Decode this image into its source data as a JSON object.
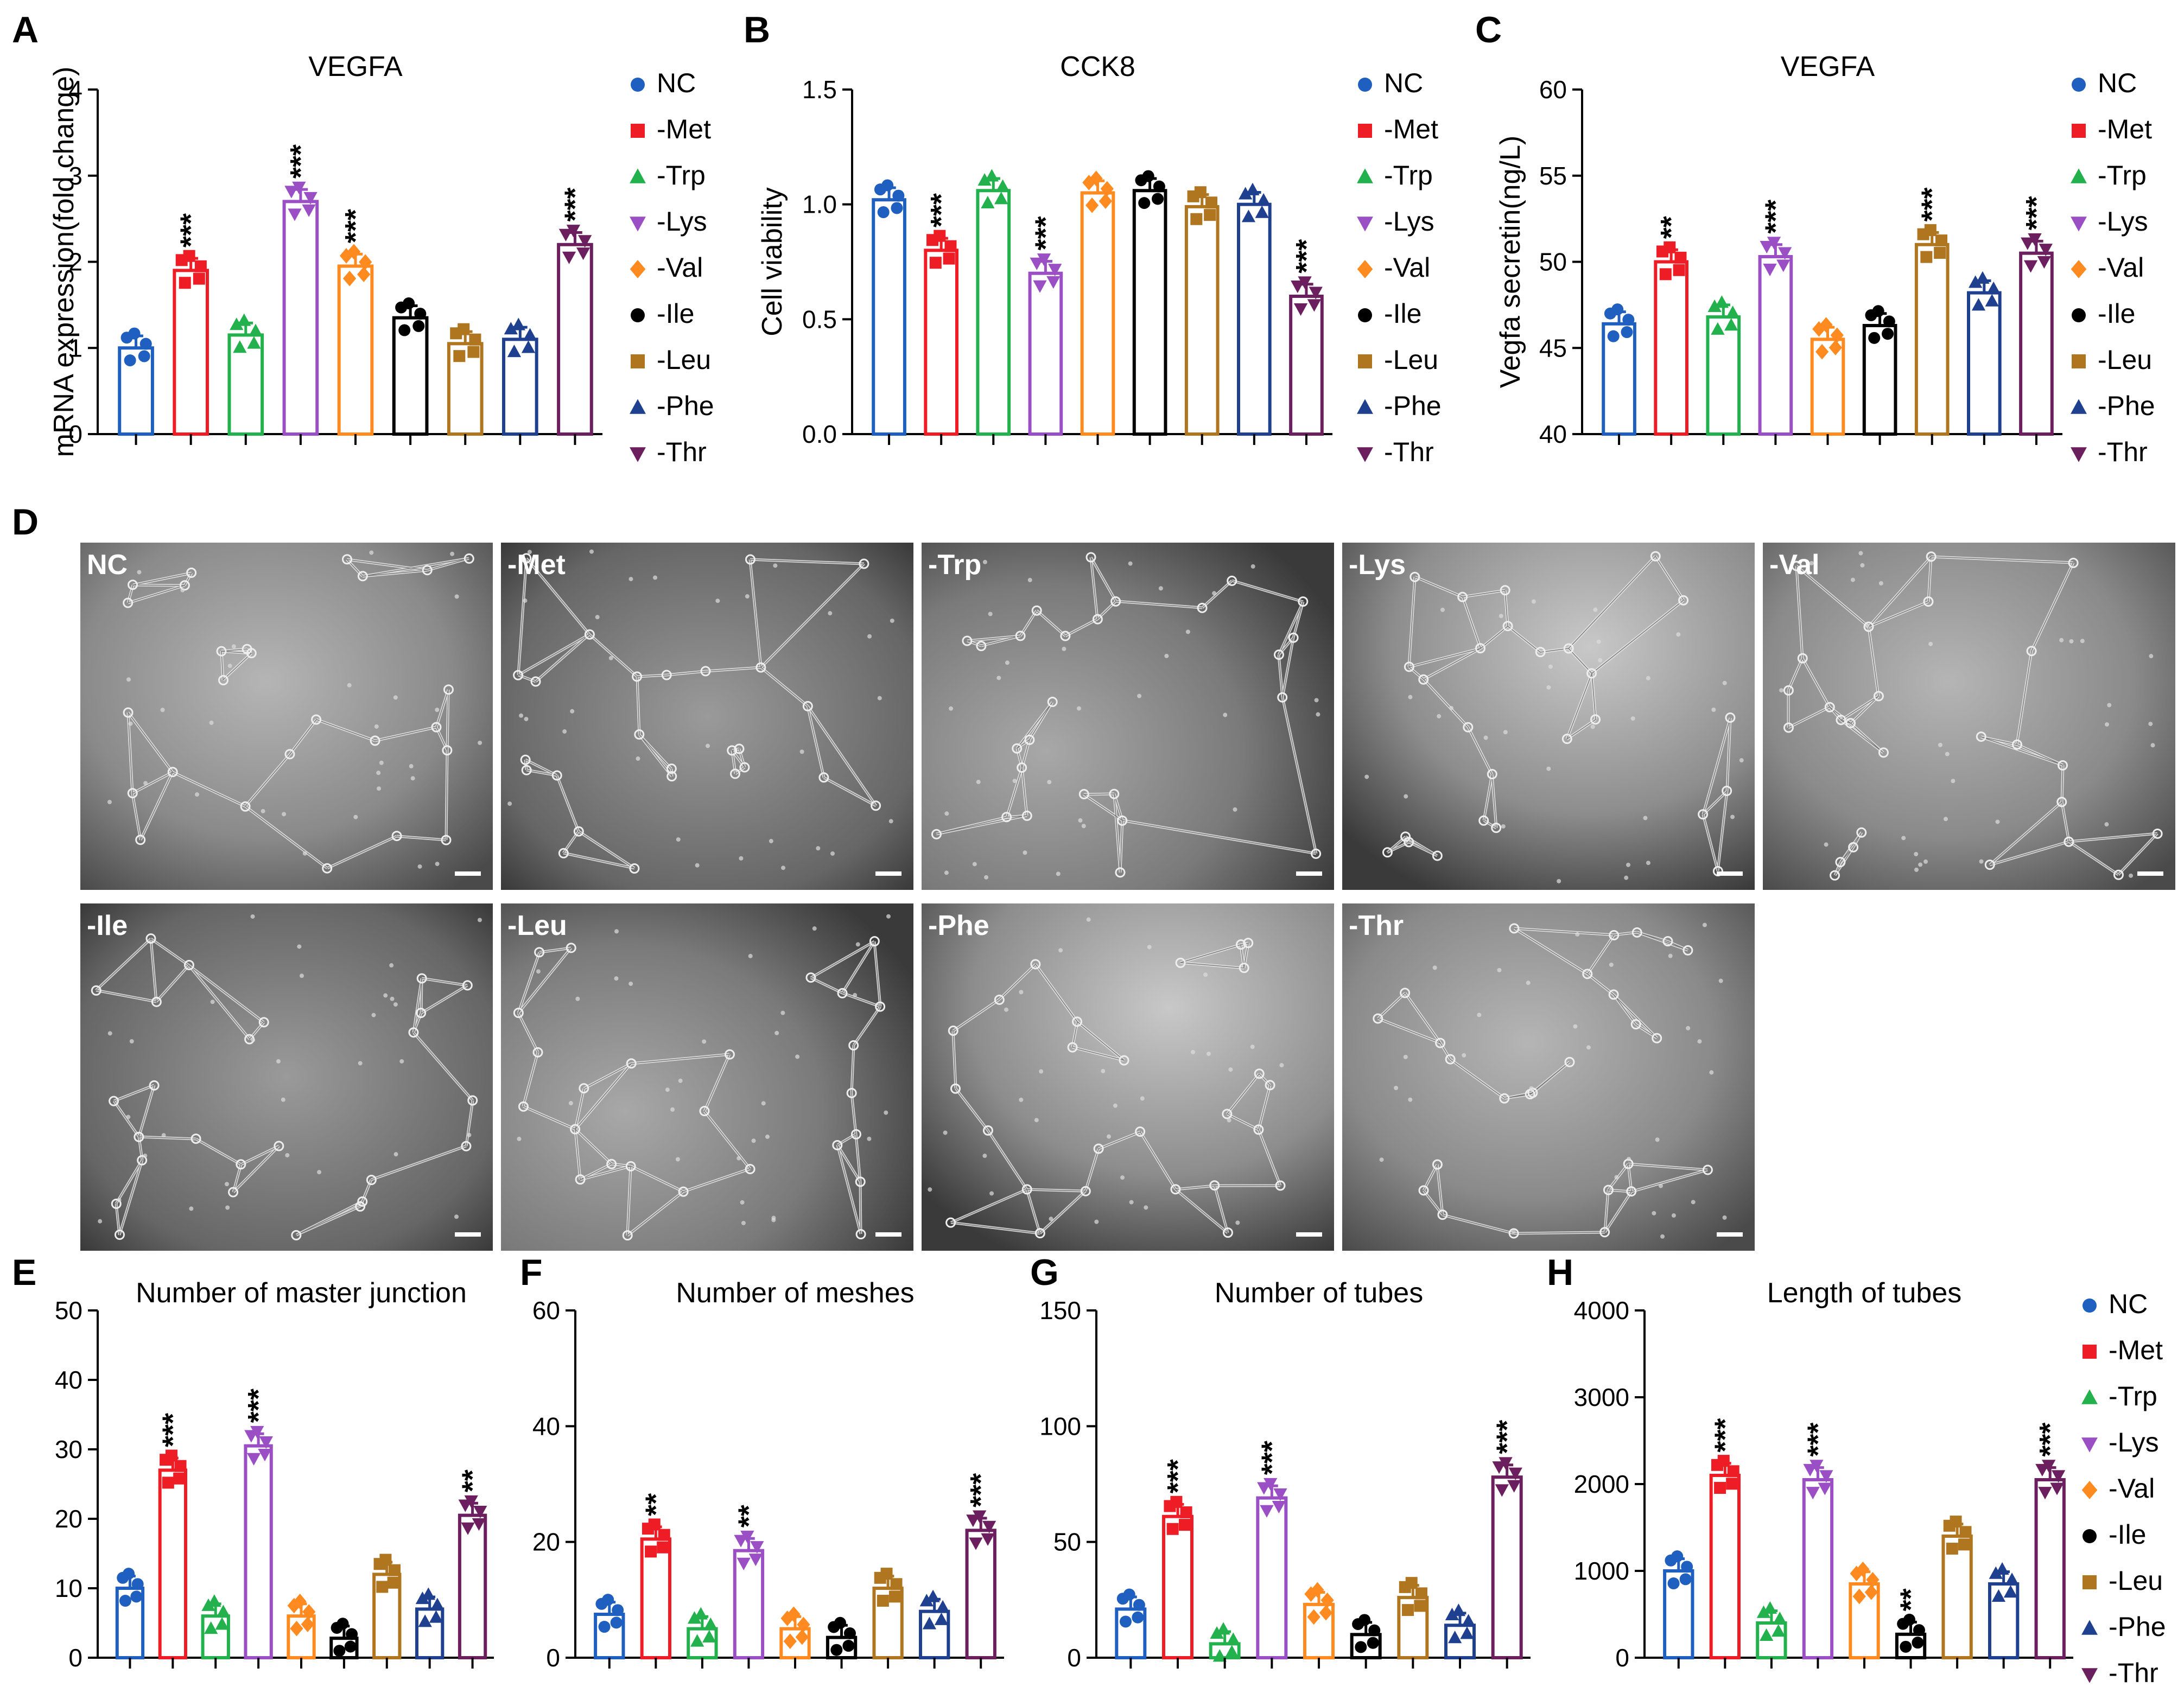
{
  "panel_labels": {
    "A": "A",
    "B": "B",
    "C": "C",
    "D": "D",
    "E": "E",
    "F": "F",
    "G": "G",
    "H": "H"
  },
  "groups": [
    {
      "label": "NC",
      "color": "#1f5fbf",
      "marker": "circle"
    },
    {
      "label": "-Met",
      "color": "#ee1c25",
      "marker": "square"
    },
    {
      "label": "-Trp",
      "color": "#22b14c",
      "marker": "triangle-up"
    },
    {
      "label": "-Lys",
      "color": "#9b4fc4",
      "marker": "triangle-down"
    },
    {
      "label": "-Val",
      "color": "#ff8a1f",
      "marker": "diamond"
    },
    {
      "label": "-Ile",
      "color": "#000000",
      "marker": "circle"
    },
    {
      "label": "-Leu",
      "color": "#b0761f",
      "marker": "square"
    },
    {
      "label": "-Phe",
      "color": "#1f3f8f",
      "marker": "triangle-up"
    },
    {
      "label": "-Thr",
      "color": "#6b1f5f",
      "marker": "triangle-down"
    }
  ],
  "chart_data": [
    {
      "id": "A",
      "type": "bar",
      "title": "VEGFA",
      "ylabel": "mRNA expression(fold change)",
      "ylim": [
        0,
        4
      ],
      "yticks": [
        "0",
        "1",
        "2",
        "3",
        "4"
      ],
      "values": [
        1.0,
        1.9,
        1.15,
        2.7,
        1.95,
        1.35,
        1.05,
        1.1,
        2.2
      ],
      "significance": [
        "",
        "***",
        "",
        "***",
        "***",
        "",
        "",
        "",
        "***"
      ]
    },
    {
      "id": "B",
      "type": "bar",
      "title": "CCK8",
      "ylabel": "Cell viability",
      "ylim": [
        0,
        1.5
      ],
      "yticks": [
        "0.0",
        "0.5",
        "1.0",
        "1.5"
      ],
      "values": [
        1.02,
        0.8,
        1.06,
        0.7,
        1.05,
        1.06,
        0.99,
        1.0,
        0.6
      ],
      "significance": [
        "",
        "***",
        "",
        "***",
        "",
        "",
        "",
        "",
        "***"
      ]
    },
    {
      "id": "C",
      "type": "bar",
      "title": "VEGFA",
      "ylabel": "Vegfa secretin(ng/L)",
      "ylim": [
        40,
        60
      ],
      "yticks": [
        "40",
        "45",
        "50",
        "55",
        "60"
      ],
      "values": [
        46.4,
        50.0,
        46.8,
        50.3,
        45.5,
        46.3,
        51.0,
        48.2,
        50.5
      ],
      "significance": [
        "",
        "**",
        "",
        "***",
        "",
        "",
        "***",
        "",
        "***"
      ]
    },
    {
      "id": "E",
      "type": "bar",
      "title": "Number of master junction",
      "ylabel": "",
      "ylim": [
        0,
        50
      ],
      "yticks": [
        "0",
        "10",
        "20",
        "30",
        "40",
        "50"
      ],
      "values": [
        10,
        27,
        6,
        30.5,
        6,
        2.8,
        12,
        7,
        20.5
      ],
      "significance": [
        "",
        "***",
        "",
        "***",
        "",
        "",
        "",
        "",
        "**"
      ]
    },
    {
      "id": "F",
      "type": "bar",
      "title": "Number of meshes",
      "ylabel": "",
      "ylim": [
        0,
        60
      ],
      "yticks": [
        "0",
        "20",
        "40",
        "60"
      ],
      "values": [
        7.5,
        20.5,
        5,
        18.5,
        5,
        3.5,
        12,
        8,
        22
      ],
      "significance": [
        "",
        "**",
        "",
        "**",
        "",
        "",
        "",
        "",
        "***"
      ]
    },
    {
      "id": "G",
      "type": "bar",
      "title": "Number of tubes",
      "ylabel": "",
      "ylim": [
        0,
        150
      ],
      "yticks": [
        "0",
        "50",
        "100",
        "150"
      ],
      "values": [
        21,
        61,
        6,
        69,
        23,
        10,
        26,
        14,
        78
      ],
      "significance": [
        "",
        "***",
        "",
        "***",
        "",
        "",
        "",
        "",
        "***"
      ]
    },
    {
      "id": "H",
      "type": "bar",
      "title": "Length of tubes",
      "ylabel": "",
      "ylim": [
        0,
        4000
      ],
      "yticks": [
        "0",
        "1000",
        "2000",
        "3000",
        "4000"
      ],
      "values": [
        1000,
        2100,
        400,
        2050,
        850,
        270,
        1400,
        850,
        2050
      ],
      "significance": [
        "",
        "***",
        "",
        "***",
        "",
        "**",
        "",
        "",
        "***"
      ]
    }
  ],
  "micrographs": [
    {
      "label": "NC"
    },
    {
      "label": "-Met"
    },
    {
      "label": "-Trp"
    },
    {
      "label": "-Lys"
    },
    {
      "label": "-Val"
    },
    {
      "label": "-Ile"
    },
    {
      "label": "-Leu"
    },
    {
      "label": "-Phe"
    },
    {
      "label": "-Thr"
    }
  ]
}
